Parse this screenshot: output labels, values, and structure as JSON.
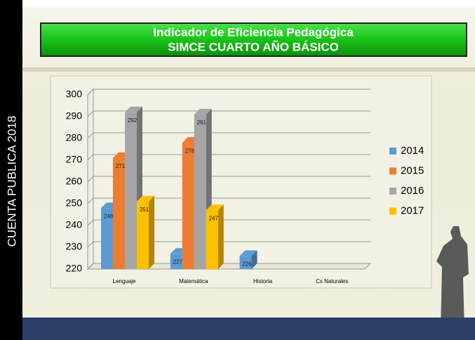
{
  "slide": {
    "title_lines": [
      "Indicador de Eficiencia Pedagógica",
      "SIMCE  CUARTO AÑO BÁSICO"
    ],
    "side_text": "CUENTA  PUBLICA  2018"
  },
  "chart_data": {
    "type": "bar3d",
    "categories": [
      "Lenguaje",
      "Matemática",
      "Historia",
      "Cs Naturales"
    ],
    "series": [
      {
        "name": "2014",
        "color": "#5b9bd5",
        "values": [
          248,
          227,
          226,
          null
        ]
      },
      {
        "name": "2015",
        "color": "#ed7d31",
        "values": [
          271,
          278,
          null,
          null
        ]
      },
      {
        "name": "2016",
        "color": "#a5a5a5",
        "values": [
          292,
          291,
          null,
          null
        ]
      },
      {
        "name": "2017",
        "color": "#ffc000",
        "values": [
          251,
          247,
          null,
          null
        ]
      }
    ],
    "ylim": [
      220,
      300
    ],
    "yticks": [
      220,
      230,
      240,
      250,
      260,
      270,
      280,
      290,
      300
    ],
    "grid": true,
    "legend": "right"
  }
}
